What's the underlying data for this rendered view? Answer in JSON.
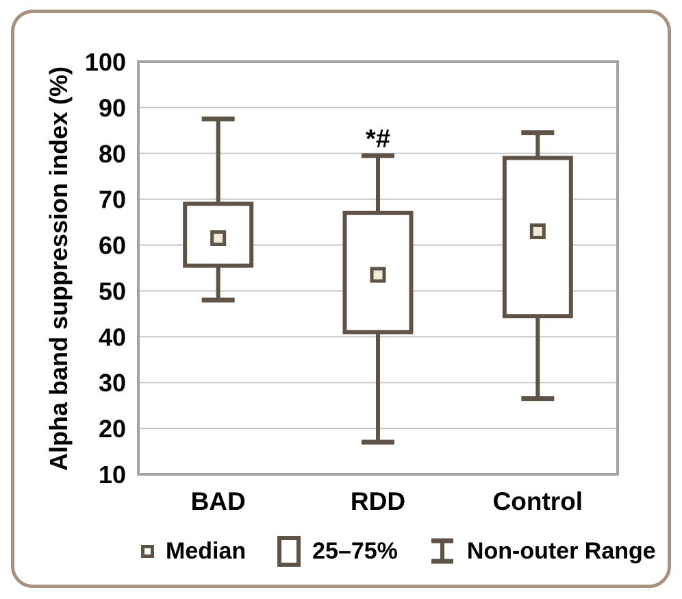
{
  "chart_data": {
    "type": "box",
    "title": "",
    "xlabel": "",
    "ylabel": "Alpha band suppression index (%)",
    "ylim": [
      10,
      100
    ],
    "ytick_step": 10,
    "yticks": [
      10,
      20,
      30,
      40,
      50,
      60,
      70,
      80,
      90,
      100
    ],
    "grid": true,
    "legend_position": "bottom",
    "categories": [
      "BAD",
      "RDD",
      "Control"
    ],
    "series": [
      {
        "name": "BAD",
        "median": 61.5,
        "q1": 55.5,
        "q3": 69.0,
        "whisker_low": 48.0,
        "whisker_high": 87.5,
        "annotation": ""
      },
      {
        "name": "RDD",
        "median": 53.5,
        "q1": 41.0,
        "q3": 67.0,
        "whisker_low": 17.0,
        "whisker_high": 79.5,
        "annotation": "*#"
      },
      {
        "name": "Control",
        "median": 63.0,
        "q1": 44.5,
        "q3": 79.0,
        "whisker_low": 26.5,
        "whisker_high": 84.5,
        "annotation": ""
      }
    ],
    "legend": [
      {
        "icon": "median-square-icon",
        "label": "Median"
      },
      {
        "icon": "iqr-box-icon",
        "label": "25–75%"
      },
      {
        "icon": "whisker-ibeam-icon",
        "label": "Non-outer Range"
      }
    ],
    "colors": {
      "box_stroke": "#5e5346",
      "median_fill": "#f1ead9",
      "grid_line": "#c6c6c6",
      "plot_border": "#a3a3a3",
      "card_border": "#a8917e",
      "text": "#000000"
    }
  }
}
